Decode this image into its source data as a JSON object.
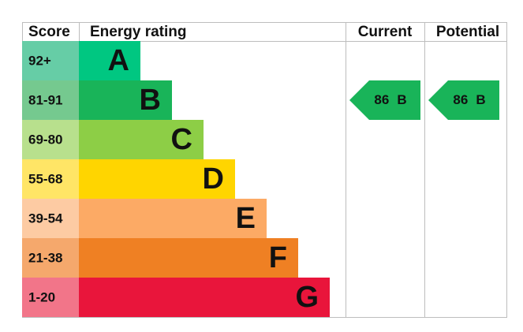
{
  "header": {
    "score": "Score",
    "rating": "Energy rating",
    "current": "Current",
    "potential": "Potential"
  },
  "bands": [
    {
      "score": "92+",
      "letter": "A",
      "color": "#00c781",
      "score_color": "#66cda6"
    },
    {
      "score": "81-91",
      "letter": "B",
      "color": "#19b459",
      "score_color": "#75c98f"
    },
    {
      "score": "69-80",
      "letter": "C",
      "color": "#8dce46",
      "score_color": "#b8e08d"
    },
    {
      "score": "55-68",
      "letter": "D",
      "color": "#ffd500",
      "score_color": "#ffe566"
    },
    {
      "score": "39-54",
      "letter": "E",
      "color": "#fcaa65",
      "score_color": "#fdcba3"
    },
    {
      "score": "21-38",
      "letter": "F",
      "color": "#ef8023",
      "score_color": "#f5a86c"
    },
    {
      "score": "1-20",
      "letter": "G",
      "color": "#e9153b",
      "score_color": "#f27589"
    }
  ],
  "current": {
    "score": 86,
    "rating": "B"
  },
  "potential": {
    "score": 86,
    "rating": "B"
  }
}
